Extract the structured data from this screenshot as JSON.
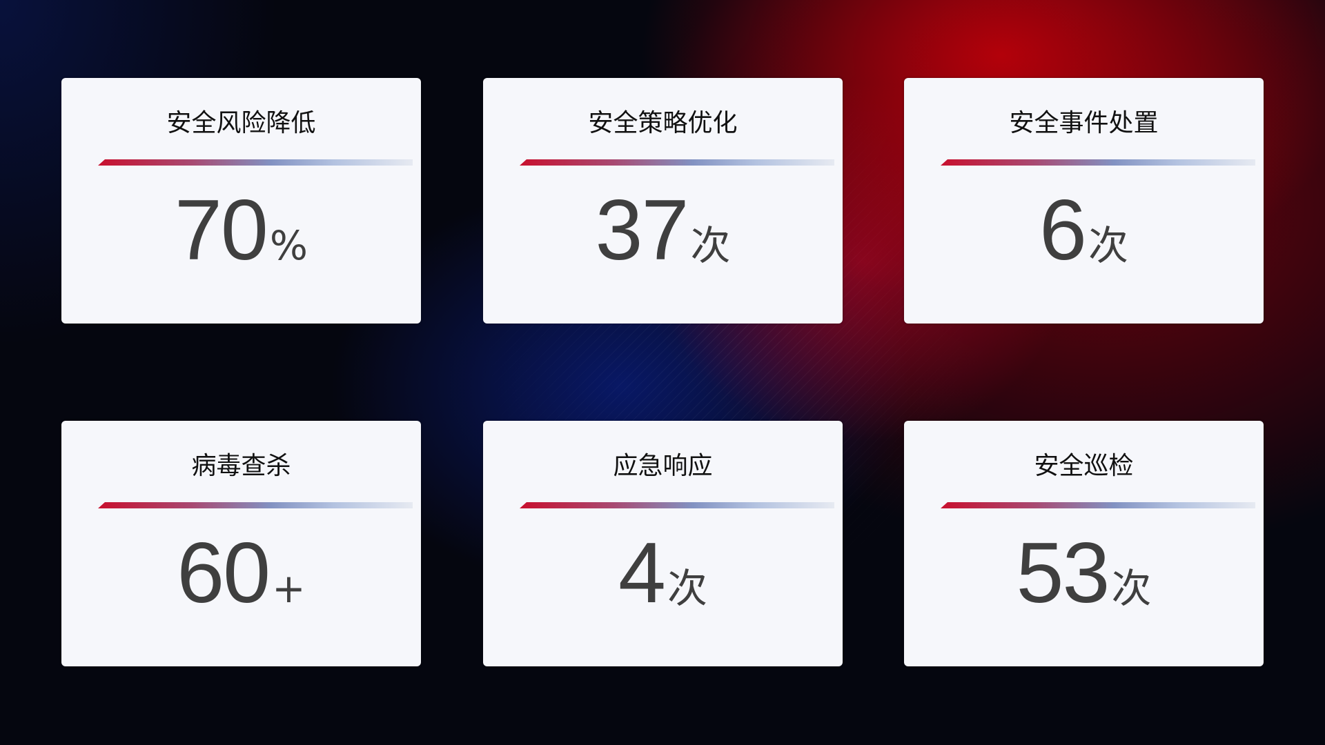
{
  "cards": [
    {
      "title": "安全风险降低",
      "value": "70",
      "unit": "%"
    },
    {
      "title": "安全策略优化",
      "value": "37",
      "unit": "次"
    },
    {
      "title": "安全事件处置",
      "value": "6",
      "unit": "次"
    },
    {
      "title": "病毒查杀",
      "value": "60",
      "unit": "+"
    },
    {
      "title": "应急响应",
      "value": "4",
      "unit": "次"
    },
    {
      "title": "安全巡检",
      "value": "53",
      "unit": "次"
    }
  ],
  "colors": {
    "accent_red": "#c8102e",
    "accent_blue": "#8292c2",
    "card_bg": "#f6f7fb",
    "value_text": "#3f3f3f"
  }
}
